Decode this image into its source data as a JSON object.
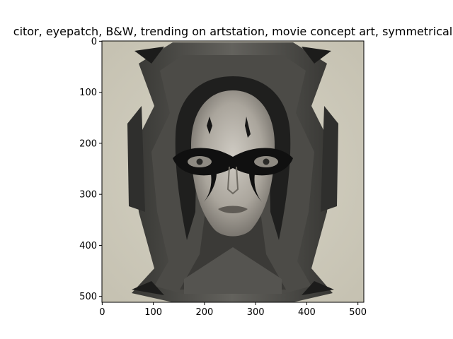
{
  "figure": {
    "title": "citor,  eyepatch, B&W, trending on artstation, movie concept art, symmetrical"
  },
  "chart_data": {
    "type": "image",
    "title": "citor,  eyepatch, B&W, trending on artstation, movie concept art, symmetrical",
    "xlabel": "",
    "ylabel": "",
    "image_size": [
      512,
      512
    ],
    "xlim": [
      -0.5,
      511.5
    ],
    "ylim": [
      511.5,
      -0.5
    ],
    "xticks": [
      0,
      100,
      200,
      300,
      400,
      500
    ],
    "yticks": [
      0,
      100,
      200,
      300,
      400,
      500
    ],
    "xtick_labels": [
      "0",
      "100",
      "200",
      "300",
      "400",
      "500"
    ],
    "ytick_labels": [
      "0",
      "100",
      "200",
      "300",
      "400",
      "500"
    ],
    "image_content": "symmetrical black-and-white portrait of a woman wearing a black eye mask, framed by a dark ornate gothic frame on a beige background",
    "colors": {
      "background": "#cfcbbb",
      "frame": "#3a3a38",
      "mask": "#111111",
      "skin": "#b9b4ab"
    }
  }
}
